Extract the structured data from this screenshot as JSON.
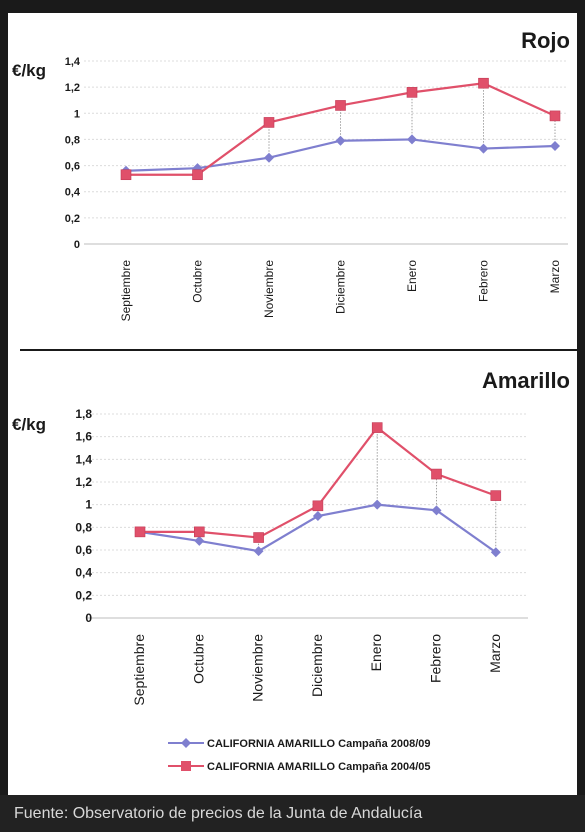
{
  "chart_data": [
    {
      "type": "line",
      "title": "Rojo",
      "ylabel": "€/kg",
      "ylim": [
        0,
        1.4
      ],
      "yticks": [
        "0",
        "0,2",
        "0,4",
        "0,6",
        "0,8",
        "1",
        "1,2",
        "1,4"
      ],
      "categories": [
        "Septiembre",
        "Octubre",
        "Noviembre",
        "Diciembre",
        "Enero",
        "Febrero",
        "Marzo"
      ],
      "grid": true,
      "series": [
        {
          "values": [
            0.56,
            0.58,
            0.66,
            0.79,
            0.8,
            0.73,
            0.75
          ],
          "color": "#7f7fcf",
          "marker": "diamond"
        },
        {
          "values": [
            0.53,
            0.53,
            0.93,
            1.06,
            1.16,
            1.23,
            0.98
          ],
          "color": "#e0506a",
          "marker": "square"
        }
      ]
    },
    {
      "type": "line",
      "title": "Amarillo",
      "ylabel": "€/kg",
      "ylim": [
        0,
        1.8
      ],
      "yticks": [
        "0",
        "0,2",
        "0,4",
        "0,6",
        "0,8",
        "1",
        "1,2",
        "1,4",
        "1,6",
        "1,8"
      ],
      "categories": [
        "Septiembre",
        "Octubre",
        "Noviembre",
        "Diciembre",
        "Enero",
        "Febrero",
        "Marzo"
      ],
      "grid": true,
      "series": [
        {
          "name": "CALIFORNIA AMARILLO Campaña 2008/09",
          "values": [
            0.76,
            0.68,
            0.59,
            0.9,
            1.0,
            0.95,
            0.58
          ],
          "color": "#7f7fcf",
          "marker": "diamond"
        },
        {
          "name": "CALIFORNIA AMARILLO Campaña 2004/05",
          "values": [
            0.76,
            0.76,
            0.71,
            0.99,
            1.68,
            1.27,
            1.08
          ],
          "color": "#e0506a",
          "marker": "square"
        }
      ]
    }
  ],
  "footer": {
    "source": "Fuente: Observatorio de precios de la Junta de Andalucía"
  }
}
